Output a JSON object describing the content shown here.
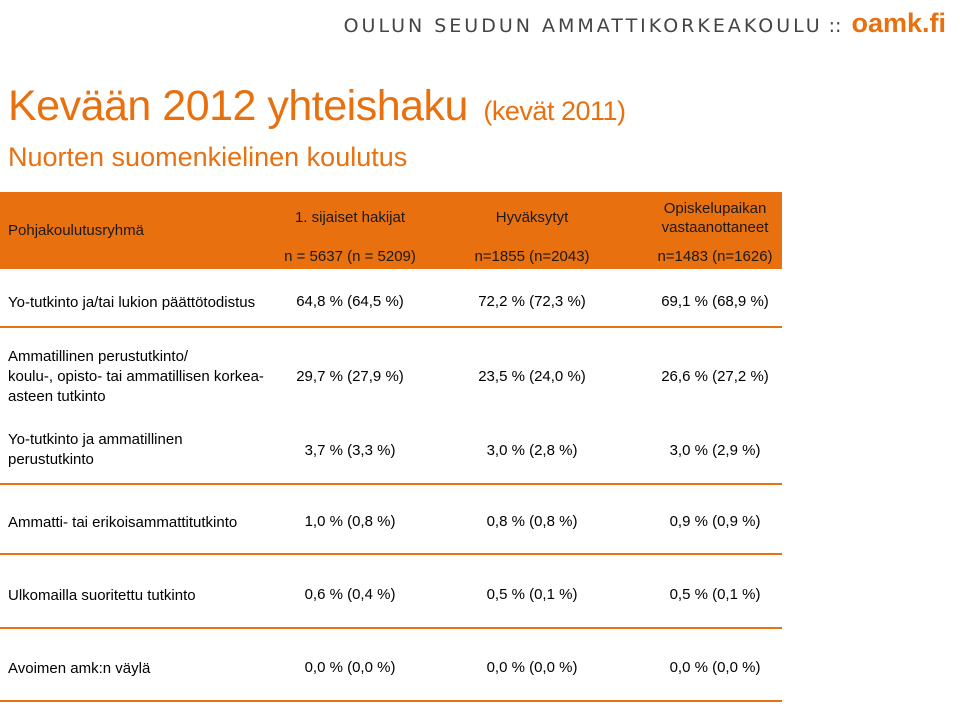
{
  "brand": {
    "school": "OULUN SEUDUN AMMATTIKORKEAKOULU",
    "separator": "::",
    "logo": "oamk.fi"
  },
  "title": {
    "main": "Kevään 2012 yhteishaku",
    "sub": "(kevät 2011)"
  },
  "subtitle": "Nuorten suomenkielinen koulutus",
  "table": {
    "header": {
      "group": "Pohjakoulutusryhmä",
      "col1": {
        "label": "1. sijaiset hakijat",
        "n": "n = 5637  (n = 5209)"
      },
      "col2": {
        "label": "Hyväksytyt",
        "n": "n=1855  (n=2043)"
      },
      "col3": {
        "label1": "Opiskelupaikan",
        "label2": "vastaanottaneet",
        "n": "n=1483  (n=1626)"
      }
    },
    "rows": [
      {
        "label": "Yo-tutkinto ja/tai lukion päättötodistus",
        "v1": "64,8 %  (64,5 %)",
        "v2": "72,2 %  (72,3 %)",
        "v3": "69,1 %  (68,9 %)"
      },
      {
        "label_lines": [
          "Ammatillinen perustutkinto/",
          "koulu-, opisto- tai ammatillisen korkea-",
          "asteen tutkinto"
        ],
        "v1": "29,7 %  (27,9 %)",
        "v2": "23,5 %  (24,0 %)",
        "v3": "26,6 %  (27,2 %)"
      },
      {
        "label_lines": [
          "Yo-tutkinto ja ammatillinen",
          "perustutkinto"
        ],
        "v1": "3,7 %  (3,3 %)",
        "v2": "3,0 %  (2,8 %)",
        "v3": "3,0 %  (2,9 %)"
      },
      {
        "label": "Ammatti- tai erikoisammattitutkinto",
        "v1": "1,0 %  (0,8 %)",
        "v2": "0,8 %  (0,8 %)",
        "v3": "0,9 %  (0,9 %)"
      },
      {
        "label": "Ulkomailla suoritettu tutkinto",
        "v1": "0,6 %  (0,4 %)",
        "v2": "0,5 %  (0,1 %)",
        "v3": "0,5 %  (0,1 %)"
      },
      {
        "label": "Avoimen amk:n väylä",
        "v1": "0,0 %  (0,0 %)",
        "v2": "0,0 %  (0,0 %)",
        "v3": "0,0 %  (0,0 %)"
      }
    ]
  },
  "colors": {
    "accent": "#e8700f",
    "brand_text": "#444444"
  }
}
